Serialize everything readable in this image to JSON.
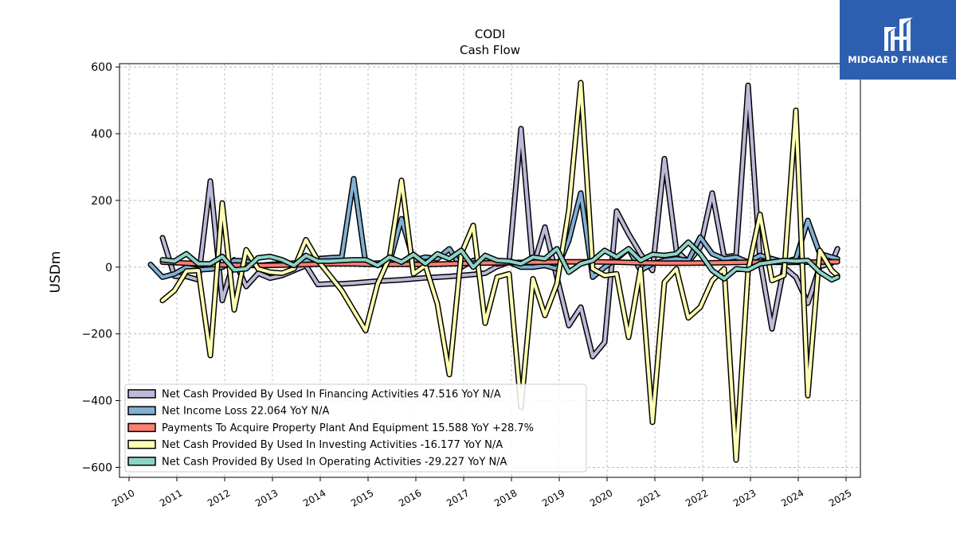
{
  "logo": {
    "text": "MIDGARD FINANCE"
  },
  "chart_data": {
    "type": "line",
    "title": "CODI",
    "subtitle": "Cash Flow",
    "xlabel": "",
    "ylabel": "USDm",
    "xlim": [
      2009.8,
      2025.3
    ],
    "ylim": [
      -630,
      610
    ],
    "yticks": [
      -600,
      -400,
      -200,
      0,
      200,
      400,
      600
    ],
    "ytick_labels": [
      "−600",
      "−400",
      "−200",
      "0",
      "200",
      "400",
      "600"
    ],
    "xticks": [
      2010,
      2011,
      2012,
      2013,
      2014,
      2015,
      2016,
      2017,
      2018,
      2019,
      2020,
      2021,
      2022,
      2023,
      2024,
      2025
    ],
    "xtick_labels": [
      "2010",
      "2011",
      "2012",
      "2013",
      "2014",
      "2015",
      "2016",
      "2017",
      "2018",
      "2019",
      "2020",
      "2021",
      "2022",
      "2023",
      "2024",
      "2025"
    ],
    "grid": true,
    "legend_position": "lower-left",
    "series": [
      {
        "name": "Net Cash Provided By Used In Financing Activities  47.516 YoY N/A",
        "color": "#bcbad9",
        "points": [
          [
            2010.7,
            88
          ],
          [
            2010.95,
            -27
          ],
          [
            2011.2,
            -28
          ],
          [
            2011.45,
            -38
          ],
          [
            2011.7,
            258
          ],
          [
            2011.95,
            -100
          ],
          [
            2012.2,
            22
          ],
          [
            2012.45,
            -58
          ],
          [
            2012.7,
            -18
          ],
          [
            2012.95,
            -33
          ],
          [
            2013.2,
            -25
          ],
          [
            2013.45,
            -10
          ],
          [
            2013.7,
            5
          ],
          [
            2013.95,
            -52
          ],
          [
            2014.2,
            -50
          ],
          [
            2014.45,
            -50
          ],
          [
            2014.7,
            -48
          ],
          [
            2015.2,
            -42
          ],
          [
            2015.45,
            -40
          ],
          [
            2015.7,
            -38
          ],
          [
            2015.95,
            -35
          ],
          [
            2016.2,
            -32
          ],
          [
            2016.45,
            -30
          ],
          [
            2016.7,
            -28
          ],
          [
            2016.95,
            -25
          ],
          [
            2017.2,
            -22
          ],
          [
            2017.45,
            -18
          ],
          [
            2017.7,
            2
          ],
          [
            2017.95,
            15
          ],
          [
            2018.2,
            415
          ],
          [
            2018.45,
            0
          ],
          [
            2018.7,
            120
          ],
          [
            2018.95,
            -30
          ],
          [
            2019.2,
            -175
          ],
          [
            2019.45,
            -120
          ],
          [
            2019.7,
            -268
          ],
          [
            2019.95,
            -225
          ],
          [
            2020.2,
            168
          ],
          [
            2020.45,
            100
          ],
          [
            2020.7,
            40
          ],
          [
            2020.95,
            -10
          ],
          [
            2021.2,
            325
          ],
          [
            2021.45,
            50
          ],
          [
            2021.7,
            15
          ],
          [
            2021.95,
            60
          ],
          [
            2022.2,
            222
          ],
          [
            2022.45,
            30
          ],
          [
            2022.7,
            35
          ],
          [
            2022.95,
            545
          ],
          [
            2023.2,
            20
          ],
          [
            2023.45,
            -185
          ],
          [
            2023.7,
            0
          ],
          [
            2023.95,
            -30
          ],
          [
            2024.2,
            -108
          ],
          [
            2024.45,
            2
          ],
          [
            2024.7,
            12
          ],
          [
            2024.82,
            55
          ]
        ]
      },
      {
        "name": "Net Income Loss  22.064 YoY N/A",
        "color": "#80b1d3",
        "points": [
          [
            2010.45,
            8
          ],
          [
            2010.7,
            -30
          ],
          [
            2010.95,
            -20
          ],
          [
            2011.2,
            0
          ],
          [
            2011.45,
            -8
          ],
          [
            2011.7,
            -6
          ],
          [
            2011.95,
            0
          ],
          [
            2012.2,
            20
          ],
          [
            2012.45,
            18
          ],
          [
            2012.7,
            5
          ],
          [
            2012.95,
            8
          ],
          [
            2013.2,
            10
          ],
          [
            2013.45,
            12
          ],
          [
            2013.7,
            20
          ],
          [
            2013.95,
            25
          ],
          [
            2014.2,
            28
          ],
          [
            2014.45,
            30
          ],
          [
            2014.7,
            265
          ],
          [
            2014.95,
            10
          ],
          [
            2015.2,
            12
          ],
          [
            2015.45,
            15
          ],
          [
            2015.7,
            145
          ],
          [
            2015.95,
            20
          ],
          [
            2016.2,
            30
          ],
          [
            2016.45,
            25
          ],
          [
            2016.7,
            55
          ],
          [
            2016.95,
            0
          ],
          [
            2017.2,
            20
          ],
          [
            2017.45,
            20
          ],
          [
            2017.7,
            10
          ],
          [
            2017.95,
            15
          ],
          [
            2018.2,
            0
          ],
          [
            2018.45,
            0
          ],
          [
            2018.7,
            5
          ],
          [
            2018.95,
            -5
          ],
          [
            2019.2,
            80
          ],
          [
            2019.45,
            222
          ],
          [
            2019.7,
            -30
          ],
          [
            2019.95,
            0
          ],
          [
            2020.2,
            25
          ],
          [
            2020.45,
            55
          ],
          [
            2020.7,
            -10
          ],
          [
            2020.95,
            10
          ],
          [
            2021.2,
            20
          ],
          [
            2021.45,
            25
          ],
          [
            2021.7,
            20
          ],
          [
            2021.95,
            90
          ],
          [
            2022.2,
            40
          ],
          [
            2022.45,
            25
          ],
          [
            2022.7,
            30
          ],
          [
            2022.95,
            15
          ],
          [
            2023.2,
            35
          ],
          [
            2023.45,
            25
          ],
          [
            2023.7,
            15
          ],
          [
            2023.95,
            25
          ],
          [
            2024.2,
            140
          ],
          [
            2024.45,
            40
          ],
          [
            2024.7,
            30
          ],
          [
            2024.82,
            25
          ]
        ]
      },
      {
        "name": "Payments To Acquire Property Plant And Equipment  15.588 YoY +28.7%",
        "color": "#fb8072",
        "points": [
          [
            2010.7,
            15
          ],
          [
            2011.2,
            12
          ],
          [
            2011.7,
            8
          ],
          [
            2012.2,
            6
          ],
          [
            2012.7,
            5
          ],
          [
            2013.2,
            6
          ],
          [
            2013.7,
            8
          ],
          [
            2014.2,
            10
          ],
          [
            2014.7,
            10
          ],
          [
            2015.2,
            8
          ],
          [
            2015.7,
            9
          ],
          [
            2016.2,
            8
          ],
          [
            2016.7,
            10
          ],
          [
            2017.2,
            12
          ],
          [
            2017.7,
            13
          ],
          [
            2018.2,
            14
          ],
          [
            2018.7,
            15
          ],
          [
            2019.2,
            16
          ],
          [
            2019.7,
            16
          ],
          [
            2020.2,
            15
          ],
          [
            2020.7,
            13
          ],
          [
            2021.2,
            12
          ],
          [
            2021.7,
            12
          ],
          [
            2022.2,
            13
          ],
          [
            2022.7,
            14
          ],
          [
            2023.2,
            15
          ],
          [
            2023.7,
            14
          ],
          [
            2024.2,
            15
          ],
          [
            2024.82,
            16
          ]
        ]
      },
      {
        "name": "Net Cash Provided By Used In Investing Activities  -16.177 YoY N/A",
        "color": "#ffffb3",
        "points": [
          [
            2010.7,
            -100
          ],
          [
            2010.95,
            -70
          ],
          [
            2011.2,
            -12
          ],
          [
            2011.45,
            -10
          ],
          [
            2011.7,
            -265
          ],
          [
            2011.95,
            192
          ],
          [
            2012.2,
            -128
          ],
          [
            2012.45,
            52
          ],
          [
            2012.7,
            -5
          ],
          [
            2012.95,
            -15
          ],
          [
            2013.2,
            -18
          ],
          [
            2013.45,
            -5
          ],
          [
            2013.7,
            82
          ],
          [
            2013.95,
            20
          ],
          [
            2014.45,
            -70
          ],
          [
            2014.95,
            -190
          ],
          [
            2015.2,
            -50
          ],
          [
            2015.45,
            30
          ],
          [
            2015.7,
            260
          ],
          [
            2015.95,
            -20
          ],
          [
            2016.2,
            5
          ],
          [
            2016.45,
            -110
          ],
          [
            2016.7,
            -322
          ],
          [
            2016.95,
            40
          ],
          [
            2017.2,
            125
          ],
          [
            2017.45,
            -168
          ],
          [
            2017.7,
            -30
          ],
          [
            2017.95,
            -20
          ],
          [
            2018.2,
            -420
          ],
          [
            2018.45,
            -35
          ],
          [
            2018.7,
            -145
          ],
          [
            2018.95,
            -50
          ],
          [
            2019.2,
            170
          ],
          [
            2019.45,
            553
          ],
          [
            2019.7,
            -5
          ],
          [
            2019.95,
            -25
          ],
          [
            2020.2,
            -20
          ],
          [
            2020.45,
            -210
          ],
          [
            2020.7,
            -5
          ],
          [
            2020.95,
            -465
          ],
          [
            2021.2,
            -45
          ],
          [
            2021.45,
            -5
          ],
          [
            2021.7,
            -152
          ],
          [
            2021.95,
            -120
          ],
          [
            2022.2,
            -40
          ],
          [
            2022.45,
            -5
          ],
          [
            2022.7,
            -578
          ],
          [
            2022.95,
            -10
          ],
          [
            2023.2,
            158
          ],
          [
            2023.45,
            -40
          ],
          [
            2023.7,
            -25
          ],
          [
            2023.95,
            470
          ],
          [
            2024.2,
            -385
          ],
          [
            2024.45,
            50
          ],
          [
            2024.7,
            -10
          ],
          [
            2024.82,
            -25
          ]
        ]
      },
      {
        "name": "Net Cash Provided By Used In Operating Activities  -29.227 YoY N/A",
        "color": "#8dd3c7",
        "points": [
          [
            2010.7,
            22
          ],
          [
            2010.95,
            18
          ],
          [
            2011.2,
            40
          ],
          [
            2011.45,
            10
          ],
          [
            2011.7,
            10
          ],
          [
            2011.95,
            32
          ],
          [
            2012.2,
            -8
          ],
          [
            2012.45,
            -5
          ],
          [
            2012.7,
            28
          ],
          [
            2012.95,
            32
          ],
          [
            2013.2,
            22
          ],
          [
            2013.45,
            5
          ],
          [
            2013.7,
            35
          ],
          [
            2013.95,
            18
          ],
          [
            2014.2,
            18
          ],
          [
            2014.45,
            20
          ],
          [
            2014.7,
            22
          ],
          [
            2014.95,
            22
          ],
          [
            2015.2,
            5
          ],
          [
            2015.45,
            30
          ],
          [
            2015.7,
            15
          ],
          [
            2015.95,
            38
          ],
          [
            2016.2,
            10
          ],
          [
            2016.45,
            40
          ],
          [
            2016.7,
            25
          ],
          [
            2016.95,
            50
          ],
          [
            2017.2,
            0
          ],
          [
            2017.45,
            35
          ],
          [
            2017.7,
            20
          ],
          [
            2017.95,
            18
          ],
          [
            2018.2,
            10
          ],
          [
            2018.45,
            30
          ],
          [
            2018.7,
            25
          ],
          [
            2018.95,
            55
          ],
          [
            2019.2,
            -15
          ],
          [
            2019.45,
            10
          ],
          [
            2019.7,
            20
          ],
          [
            2019.95,
            50
          ],
          [
            2020.2,
            30
          ],
          [
            2020.45,
            55
          ],
          [
            2020.7,
            20
          ],
          [
            2020.95,
            38
          ],
          [
            2021.2,
            35
          ],
          [
            2021.45,
            40
          ],
          [
            2021.7,
            75
          ],
          [
            2021.95,
            40
          ],
          [
            2022.2,
            -10
          ],
          [
            2022.45,
            -35
          ],
          [
            2022.7,
            -5
          ],
          [
            2022.95,
            -8
          ],
          [
            2023.2,
            10
          ],
          [
            2023.45,
            15
          ],
          [
            2023.7,
            20
          ],
          [
            2023.95,
            18
          ],
          [
            2024.2,
            20
          ],
          [
            2024.45,
            -15
          ],
          [
            2024.7,
            -38
          ],
          [
            2024.82,
            -30
          ]
        ]
      }
    ]
  }
}
